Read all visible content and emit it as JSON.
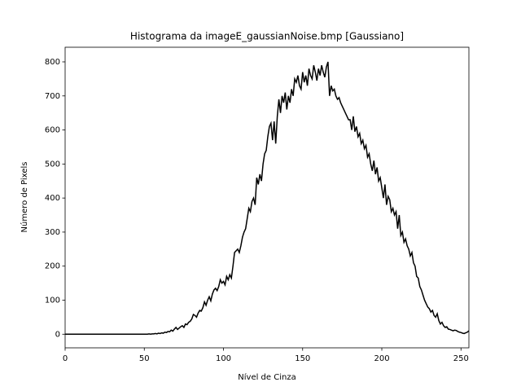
{
  "chart_data": {
    "type": "line",
    "title": "Histograma da imageE_gaussianNoise.bmp [Gaussiano]",
    "x_label": "Nível de Cinza",
    "y_label": "Número de Pixels",
    "color": "#000000",
    "xlim": [
      0,
      255
    ],
    "ylim": [
      -40,
      843
    ],
    "xticks": [
      0,
      50,
      100,
      150,
      200,
      250
    ],
    "yticks": [
      0,
      100,
      200,
      300,
      400,
      500,
      600,
      700,
      800
    ],
    "x": [
      0,
      1,
      2,
      3,
      4,
      5,
      6,
      7,
      8,
      9,
      10,
      11,
      12,
      13,
      14,
      15,
      16,
      17,
      18,
      19,
      20,
      21,
      22,
      23,
      24,
      25,
      26,
      27,
      28,
      29,
      30,
      31,
      32,
      33,
      34,
      35,
      36,
      37,
      38,
      39,
      40,
      41,
      42,
      43,
      44,
      45,
      46,
      47,
      48,
      49,
      50,
      51,
      52,
      53,
      54,
      55,
      56,
      57,
      58,
      59,
      60,
      61,
      62,
      63,
      64,
      65,
      66,
      67,
      68,
      69,
      70,
      71,
      72,
      73,
      74,
      75,
      76,
      77,
      78,
      79,
      80,
      81,
      82,
      83,
      84,
      85,
      86,
      87,
      88,
      89,
      90,
      91,
      92,
      93,
      94,
      95,
      96,
      97,
      98,
      99,
      100,
      101,
      102,
      103,
      104,
      105,
      106,
      107,
      108,
      109,
      110,
      111,
      112,
      113,
      114,
      115,
      116,
      117,
      118,
      119,
      120,
      121,
      122,
      123,
      124,
      125,
      126,
      127,
      128,
      129,
      130,
      131,
      132,
      133,
      134,
      135,
      136,
      137,
      138,
      139,
      140,
      141,
      142,
      143,
      144,
      145,
      146,
      147,
      148,
      149,
      150,
      151,
      152,
      153,
      154,
      155,
      156,
      157,
      158,
      159,
      160,
      161,
      162,
      163,
      164,
      165,
      166,
      167,
      168,
      169,
      170,
      171,
      172,
      173,
      174,
      175,
      176,
      177,
      178,
      179,
      180,
      181,
      182,
      183,
      184,
      185,
      186,
      187,
      188,
      189,
      190,
      191,
      192,
      193,
      194,
      195,
      196,
      197,
      198,
      199,
      200,
      201,
      202,
      203,
      204,
      205,
      206,
      207,
      208,
      209,
      210,
      211,
      212,
      213,
      214,
      215,
      216,
      217,
      218,
      219,
      220,
      221,
      222,
      223,
      224,
      225,
      226,
      227,
      228,
      229,
      230,
      231,
      232,
      233,
      234,
      235,
      236,
      237,
      238,
      239,
      240,
      241,
      242,
      243,
      244,
      245,
      246,
      247,
      248,
      249,
      250,
      251,
      252,
      253,
      254,
      255
    ],
    "values": [
      0,
      0,
      0,
      0,
      0,
      0,
      0,
      0,
      0,
      0,
      0,
      0,
      0,
      0,
      0,
      0,
      0,
      0,
      0,
      0,
      0,
      0,
      0,
      0,
      0,
      0,
      0,
      0,
      0,
      0,
      0,
      0,
      0,
      0,
      0,
      0,
      0,
      0,
      0,
      0,
      0,
      0,
      0,
      0,
      0,
      0,
      0,
      0,
      0,
      0,
      0,
      0,
      0,
      1,
      0,
      1,
      1,
      2,
      1,
      3,
      2,
      4,
      3,
      6,
      5,
      8,
      7,
      12,
      9,
      15,
      20,
      14,
      18,
      22,
      25,
      20,
      30,
      28,
      35,
      38,
      45,
      58,
      55,
      50,
      62,
      70,
      68,
      78,
      95,
      85,
      100,
      110,
      98,
      118,
      130,
      135,
      128,
      140,
      160,
      150,
      155,
      145,
      170,
      160,
      175,
      165,
      200,
      240,
      245,
      250,
      240,
      260,
      285,
      300,
      310,
      340,
      370,
      360,
      390,
      400,
      380,
      460,
      440,
      470,
      450,
      500,
      530,
      540,
      580,
      610,
      620,
      570,
      625,
      560,
      640,
      690,
      650,
      700,
      680,
      710,
      660,
      700,
      680,
      720,
      700,
      750,
      740,
      760,
      730,
      720,
      770,
      740,
      760,
      730,
      780,
      760,
      750,
      790,
      770,
      745,
      780,
      760,
      790,
      770,
      755,
      785,
      800,
      700,
      730,
      715,
      720,
      700,
      690,
      695,
      680,
      670,
      660,
      650,
      640,
      630,
      630,
      600,
      640,
      595,
      610,
      580,
      590,
      560,
      570,
      545,
      555,
      520,
      530,
      500,
      480,
      510,
      470,
      490,
      450,
      460,
      430,
      400,
      440,
      380,
      405,
      395,
      360,
      370,
      350,
      360,
      310,
      350,
      290,
      300,
      270,
      280,
      260,
      250,
      230,
      240,
      210,
      200,
      170,
      165,
      140,
      130,
      115,
      100,
      90,
      80,
      75,
      65,
      70,
      55,
      50,
      60,
      40,
      30,
      35,
      25,
      20,
      22,
      15,
      14,
      12,
      10,
      12,
      11,
      8,
      6,
      5,
      3,
      2,
      4,
      6,
      10
    ]
  }
}
